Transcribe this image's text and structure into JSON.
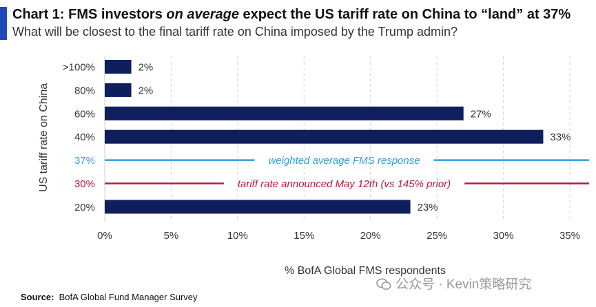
{
  "title": {
    "prefix": "Chart 1: FMS investors ",
    "emphasis": "on average",
    "suffix": " expect the US tariff rate on China to “land” at 37%"
  },
  "subtitle": "What will be closest to the final tariff rate on China imposed by the Trump admin?",
  "source": {
    "label": "Source:",
    "text": "BofA Global Fund Manager Survey"
  },
  "watermark": {
    "icon": "wechat-icon",
    "text": "公众号 · Kevin策略研究"
  },
  "chart_data": {
    "type": "bar",
    "orientation": "horizontal",
    "xlabel": "% BofA Global FMS respondents",
    "ylabel": "US tariff rate on China",
    "xlim": [
      0,
      35
    ],
    "xticks": [
      "0%",
      "5%",
      "10%",
      "15%",
      "20%",
      "25%",
      "30%",
      "35%"
    ],
    "grid": true,
    "bar_color": "#0f1f5e",
    "rows": [
      {
        "category": ">100%",
        "value": 2,
        "label": "2%",
        "kind": "bar"
      },
      {
        "category": "80%",
        "value": 2,
        "label": "2%",
        "kind": "bar"
      },
      {
        "category": "60%",
        "value": 27,
        "label": "27%",
        "kind": "bar"
      },
      {
        "category": "40%",
        "value": 33,
        "label": "33%",
        "kind": "bar"
      },
      {
        "category": "37%",
        "kind": "reference",
        "label": "weighted average FMS response",
        "color": "#2b9fdb"
      },
      {
        "category": "30%",
        "kind": "reference",
        "label": "tariff rate announced May 12th (vs 145% prior)",
        "color": "#b8183a"
      },
      {
        "category": "20%",
        "value": 23,
        "label": "23%",
        "kind": "bar"
      }
    ]
  }
}
